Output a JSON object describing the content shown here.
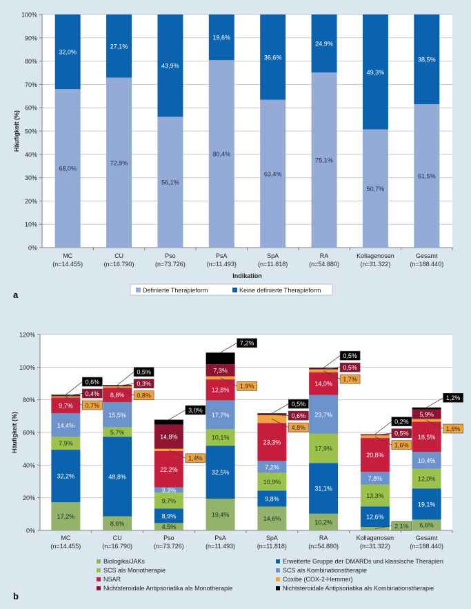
{
  "chart_data": [
    {
      "type": "bar",
      "stacked": true,
      "panel_label": "a",
      "ylabel": "Häufigkeit (%)",
      "xlabel": "Indikation",
      "ylim": [
        0,
        100
      ],
      "yticks": [
        "0%",
        "10%",
        "20%",
        "30%",
        "40%",
        "50%",
        "60%",
        "70%",
        "80%",
        "90%",
        "100%"
      ],
      "categories": [
        {
          "name": "MC",
          "n": "(n=14.455)"
        },
        {
          "name": "CU",
          "n": "(n=16.790)"
        },
        {
          "name": "Pso",
          "n": "(n=73.726)"
        },
        {
          "name": "PsA",
          "n": "(n=11.493)"
        },
        {
          "name": "SpA",
          "n": "(n=11.818)"
        },
        {
          "name": "RA",
          "n": "(n=54.880)"
        },
        {
          "name": "Kollagenosen",
          "n": "(n=31.322)"
        },
        {
          "name": "Gesamt",
          "n": "(n=188.440)"
        }
      ],
      "series": [
        {
          "name": "Definierte Therapieform",
          "color": "#93abd6",
          "values": [
            68.0,
            72.9,
            56.1,
            80.4,
            63.4,
            75.1,
            50.7,
            61.5
          ],
          "labels": [
            "68,0%",
            "72,9%",
            "56,1%",
            "80,4%",
            "63,4%",
            "75,1%",
            "50,7%",
            "61,5%"
          ]
        },
        {
          "name": "Keine definierte Therapieform",
          "color": "#0b63b0",
          "values": [
            32.0,
            27.1,
            43.9,
            19.6,
            36.6,
            24.9,
            49.3,
            38.5
          ],
          "labels": [
            "32,0%",
            "27,1%",
            "43,9%",
            "19,6%",
            "36,6%",
            "24,9%",
            "49,3%",
            "38,5%"
          ]
        }
      ]
    },
    {
      "type": "bar",
      "stacked": true,
      "panel_label": "b",
      "ylabel": "Häufigkeit (%)",
      "ylim": [
        0,
        120
      ],
      "yticks": [
        "0%",
        "20%",
        "40%",
        "60%",
        "80%",
        "100%",
        "120%"
      ],
      "categories": [
        {
          "name": "MC",
          "n": "(n=14.455)"
        },
        {
          "name": "CU",
          "n": "(n=16.790)"
        },
        {
          "name": "Pso",
          "n": "(n=73.726)"
        },
        {
          "name": "PsA",
          "n": "(n=11.493)"
        },
        {
          "name": "SpA",
          "n": "(n=11.818)"
        },
        {
          "name": "RA",
          "n": "(n=54.880)"
        },
        {
          "name": "Kollagenosen",
          "n": "(n=31.322)"
        },
        {
          "name": "Gesamt",
          "n": "(n=188.440)"
        }
      ],
      "series": [
        {
          "name": "Biologika/JAKs",
          "color": "#93b36a",
          "label_style": "inline-dark",
          "values": [
            17.2,
            8.6,
            4.5,
            19.4,
            14.6,
            10.2,
            2.1,
            6.6
          ],
          "labels": [
            "17,2%",
            "8,6%",
            "4,5%",
            "19,4%",
            "14,6%",
            "10,2%",
            "2,1%",
            "6,6%"
          ]
        },
        {
          "name": "Erweiterte Gruppe der DMARDs und klassische Therapien",
          "color": "#0b63b0",
          "label_style": "inline-light",
          "values": [
            32.2,
            48.8,
            8.9,
            32.5,
            9.8,
            31.1,
            12.6,
            19.1
          ],
          "labels": [
            "32,2%",
            "48,8%",
            "8,9%",
            "32,5%",
            "9,8%",
            "31,1%",
            "12,6%",
            "19,1%"
          ]
        },
        {
          "name": "SCS als Monotherapie",
          "color": "#9bc34b",
          "label_style": "inline-dark",
          "values": [
            7.9,
            5.7,
            9.7,
            10.1,
            10.9,
            17.9,
            13.3,
            12.0
          ],
          "labels": [
            "7,9%",
            "5,7%",
            "9,7%",
            "10,1%",
            "10,9%",
            "17,9%",
            "13,3%",
            "12,0%"
          ]
        },
        {
          "name": "SCS als Kombinationstherapie",
          "color": "#6d93cc",
          "label_style": "inline-light",
          "values": [
            14.4,
            15.5,
            3.3,
            17.7,
            7.2,
            23.7,
            7.8,
            10.4
          ],
          "labels": [
            "14,4%",
            "15,5%",
            "3,3%",
            "17,7%",
            "7,2%",
            "23,7%",
            "7,8%",
            "10,4%"
          ]
        },
        {
          "name": "NSAR",
          "color": "#c81e3e",
          "label_style": "inline-light",
          "values": [
            9.7,
            8.8,
            22.2,
            12.8,
            23.3,
            14.0,
            20.8,
            18.5
          ],
          "labels": [
            "9,7%",
            "8,8%",
            "22,2%",
            "12,8%",
            "23,3%",
            "14,0%",
            "20,8%",
            "18,5%"
          ]
        },
        {
          "name": "Coxibe (COX-2-Hemmer)",
          "color": "#f0a33c",
          "label_style": "callout",
          "values": [
            0.7,
            0.8,
            1.4,
            1.9,
            4.8,
            1.7,
            1.6,
            1.6
          ],
          "labels": [
            "0,7%",
            "0,8%",
            "1,4%",
            "1,9%",
            "4,8%",
            "1,7%",
            "1,6%",
            "1,6%"
          ]
        },
        {
          "name": "Nichtsteroidale Antipsoriatika als Monotherapie",
          "color": "#8e1432",
          "label_style": "mixed",
          "values": [
            0.4,
            0.3,
            14.8,
            7.3,
            0.6,
            0.5,
            0.5,
            5.9
          ],
          "labels": [
            "0,4%",
            "0,3%",
            "14,8%",
            "7,3%",
            "0,6%",
            "0,5%",
            "0,5%",
            "5,9%"
          ]
        },
        {
          "name": "Nichtsteroidale Antipsoriatika als Kombinationstherapie",
          "color": "#000000",
          "label_style": "callout",
          "values": [
            0.6,
            0.5,
            3.0,
            7.2,
            0.5,
            0.5,
            0.2,
            1.2
          ],
          "labels": [
            "0,6%",
            "0,5%",
            "3,0%",
            "7,2%",
            "0,5%",
            "0,5%",
            "0,2%",
            "1,2%"
          ]
        }
      ]
    }
  ]
}
